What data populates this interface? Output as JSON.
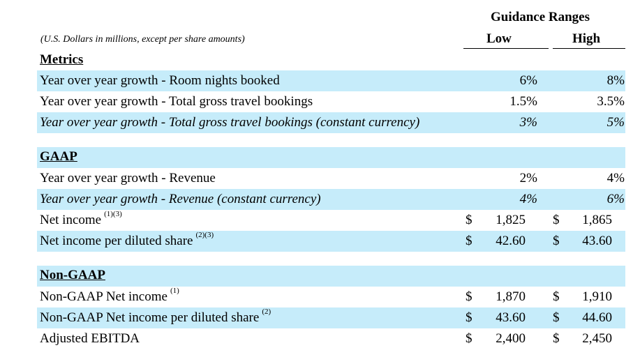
{
  "header": {
    "guidance_title": "Guidance Ranges",
    "low_label": "Low",
    "high_label": "High",
    "units_note": "(U.S. Dollars in millions, except per share amounts)"
  },
  "metrics": {
    "section_title": "Metrics",
    "room_nights": {
      "label": "Year over year growth - Room nights booked",
      "low": "6%",
      "high": "8%"
    },
    "gross_bookings": {
      "label": "Year over year growth - Total gross travel bookings",
      "low": "1.5%",
      "high": "3.5%"
    },
    "gross_bookings_cc": {
      "label": "Year over year growth - Total gross travel bookings (constant currency)",
      "low": "3%",
      "high": "5%"
    }
  },
  "gaap": {
    "section_title": "GAAP",
    "revenue": {
      "label": "Year over year growth - Revenue",
      "low": "2%",
      "high": "4%"
    },
    "revenue_cc": {
      "label": "Year over year growth - Revenue (constant currency)",
      "low": "4%",
      "high": "6%"
    },
    "net_income": {
      "label": "Net income",
      "note": "(1)(3)",
      "currency": "$",
      "low": "1,825",
      "high": "1,865"
    },
    "net_income_per_share": {
      "label": "Net income per diluted share",
      "note": "(2)(3)",
      "currency": "$",
      "low": "42.60",
      "high": "43.60"
    }
  },
  "non_gaap": {
    "section_title": "Non-GAAP",
    "net_income": {
      "label": "Non-GAAP Net income",
      "note": "(1)",
      "currency": "$",
      "low": "1,870",
      "high": "1,910"
    },
    "net_income_per_share": {
      "label": "Non-GAAP Net income per diluted share",
      "note": "(2)",
      "currency": "$",
      "low": "43.60",
      "high": "44.60"
    },
    "adjusted_ebitda": {
      "label": "Adjusted EBITDA",
      "currency": "$",
      "low": "2,400",
      "high": "2,450"
    }
  },
  "colors": {
    "row_highlight": "#c6ecfa",
    "text": "#000000"
  }
}
